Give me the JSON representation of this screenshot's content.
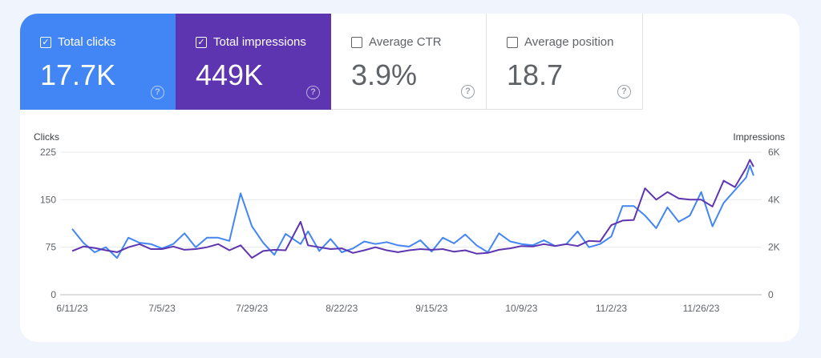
{
  "metrics": [
    {
      "label": "Total clicks",
      "value": "17.7K",
      "checked": true,
      "color": "#4285f4"
    },
    {
      "label": "Total impressions",
      "value": "449K",
      "checked": true,
      "color": "#5e35b1"
    },
    {
      "label": "Average CTR",
      "value": "3.9%",
      "checked": false
    },
    {
      "label": "Average position",
      "value": "18.7",
      "checked": false
    }
  ],
  "help_glyph": "?",
  "check_glyph": "✓",
  "chart_data": {
    "type": "line",
    "ylabel_left": "Clicks",
    "ylabel_right": "Impressions",
    "ylim_left": [
      0,
      225
    ],
    "ylim_right": [
      0,
      6000
    ],
    "yticks_left": [
      "0",
      "75",
      "150",
      "225"
    ],
    "yticks_right": [
      "0",
      "2K",
      "4K",
      "6K"
    ],
    "xticks": [
      "6/11/23",
      "7/5/23",
      "7/29/23",
      "8/22/23",
      "9/15/23",
      "10/9/23",
      "11/2/23",
      "11/26/23"
    ],
    "grid": true,
    "x": [
      "2023-06-11",
      "2023-06-14",
      "2023-06-17",
      "2023-06-20",
      "2023-06-23",
      "2023-06-26",
      "2023-06-29",
      "2023-07-02",
      "2023-07-05",
      "2023-07-08",
      "2023-07-11",
      "2023-07-14",
      "2023-07-17",
      "2023-07-20",
      "2023-07-23",
      "2023-07-26",
      "2023-07-29",
      "2023-08-01",
      "2023-08-04",
      "2023-08-07",
      "2023-08-11",
      "2023-08-13",
      "2023-08-16",
      "2023-08-19",
      "2023-08-22",
      "2023-08-25",
      "2023-08-28",
      "2023-08-31",
      "2023-09-03",
      "2023-09-06",
      "2023-09-09",
      "2023-09-12",
      "2023-09-15",
      "2023-09-18",
      "2023-09-21",
      "2023-09-24",
      "2023-09-27",
      "2023-09-30",
      "2023-10-03",
      "2023-10-06",
      "2023-10-09",
      "2023-10-12",
      "2023-10-15",
      "2023-10-18",
      "2023-10-21",
      "2023-10-24",
      "2023-10-27",
      "2023-10-30",
      "2023-11-02",
      "2023-11-05",
      "2023-11-08",
      "2023-11-11",
      "2023-11-14",
      "2023-11-17",
      "2023-11-20",
      "2023-11-23",
      "2023-11-26",
      "2023-11-29",
      "2023-12-02",
      "2023-12-05",
      "2023-12-08",
      "2023-12-09",
      "2023-12-10"
    ],
    "series": [
      {
        "name": "Clicks",
        "axis": "left",
        "color": "#4285f4",
        "values": [
          104,
          82,
          67,
          75,
          58,
          90,
          82,
          80,
          73,
          80,
          97,
          75,
          90,
          90,
          85,
          160,
          108,
          82,
          63,
          96,
          80,
          100,
          69,
          88,
          67,
          73,
          84,
          80,
          83,
          78,
          76,
          86,
          68,
          90,
          81,
          95,
          78,
          67,
          97,
          84,
          80,
          78,
          86,
          77,
          80,
          100,
          75,
          80,
          92,
          140,
          140,
          125,
          105,
          138,
          115,
          125,
          162,
          108,
          145,
          165,
          185,
          204,
          188
        ]
      },
      {
        "name": "Impressions",
        "axis": "right",
        "color": "#5e35b1",
        "values": [
          1840,
          2030,
          1970,
          1870,
          1790,
          2000,
          2130,
          1920,
          1920,
          2030,
          1890,
          1920,
          2000,
          2130,
          1870,
          2080,
          1550,
          1840,
          1890,
          1870,
          3070,
          2080,
          2000,
          1920,
          1950,
          1760,
          1870,
          2000,
          1870,
          1790,
          1870,
          1920,
          1890,
          1920,
          1810,
          1870,
          1730,
          1760,
          1890,
          1950,
          2050,
          2030,
          2130,
          2050,
          2130,
          2050,
          2270,
          2240,
          2930,
          3120,
          3150,
          4480,
          4000,
          4320,
          4050,
          4000,
          4000,
          3710,
          4800,
          4530,
          5330,
          5680,
          5390
        ]
      }
    ]
  }
}
